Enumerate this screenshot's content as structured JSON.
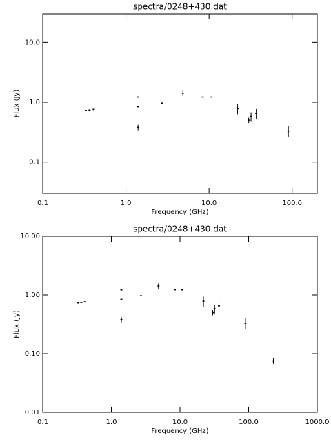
{
  "chart_data": [
    {
      "type": "scatter",
      "title": "spectra/0248+430.dat",
      "x_label": "Frequency (GHz)",
      "y_label": "Flux (Jy)",
      "log_x": true,
      "log_y": true,
      "color": "#000000",
      "xlim": [
        0.1,
        200
      ],
      "ylim": [
        0.03,
        30
      ],
      "xticks": [
        0.1,
        {
          "value": 1,
          "label": "1.0"
        },
        {
          "value": 10,
          "label": "10.0"
        },
        {
          "value": 100,
          "label": "100.0"
        }
      ],
      "yticks": [
        0.1,
        {
          "value": 1,
          "label": "1.0"
        },
        {
          "value": 10,
          "label": "10.0"
        }
      ],
      "x": [
        0.33,
        0.365,
        0.41,
        1.4,
        1.4,
        1.4,
        2.7,
        4.85,
        8.4,
        10.7,
        22,
        30,
        32,
        37,
        90
      ],
      "values": [
        0.73,
        0.74,
        0.76,
        0.84,
        1.22,
        0.38,
        0.97,
        1.42,
        1.22,
        1.22,
        0.78,
        0.5,
        0.58,
        0.65,
        0.33
      ],
      "errors": [
        0.02,
        0.02,
        0.02,
        0.02,
        0.03,
        0.04,
        0.02,
        0.15,
        0.02,
        0.02,
        0.15,
        0.05,
        0.1,
        0.12,
        0.07
      ]
    },
    {
      "type": "scatter",
      "title": "spectra/0248+430.dat",
      "x_label": "Frequency (GHz)",
      "y_label": "Flux (Jy)",
      "log_x": true,
      "log_y": true,
      "color": "#000000",
      "xlim": [
        0.1,
        1000
      ],
      "ylim": [
        0.01,
        10
      ],
      "xticks": [
        0.1,
        {
          "value": 1,
          "label": "1.0"
        },
        {
          "value": 10,
          "label": "10.0"
        },
        {
          "value": 100,
          "label": "100.0"
        },
        {
          "value": 1000,
          "label": "1000.0"
        }
      ],
      "yticks": [
        0.01,
        {
          "value": 0.1,
          "label": "0.10"
        },
        {
          "value": 1,
          "label": "1.00"
        },
        {
          "value": 10,
          "label": "10.00"
        }
      ],
      "x": [
        0.33,
        0.365,
        0.41,
        1.4,
        1.4,
        1.4,
        2.7,
        4.85,
        8.4,
        10.7,
        22,
        30,
        32,
        37,
        90,
        230
      ],
      "values": [
        0.73,
        0.74,
        0.76,
        0.84,
        1.22,
        0.38,
        0.97,
        1.42,
        1.22,
        1.22,
        0.78,
        0.5,
        0.58,
        0.65,
        0.33,
        0.075
      ],
      "errors": [
        0.02,
        0.02,
        0.02,
        0.02,
        0.03,
        0.04,
        0.02,
        0.15,
        0.02,
        0.02,
        0.15,
        0.05,
        0.1,
        0.12,
        0.07,
        0.008
      ]
    }
  ]
}
